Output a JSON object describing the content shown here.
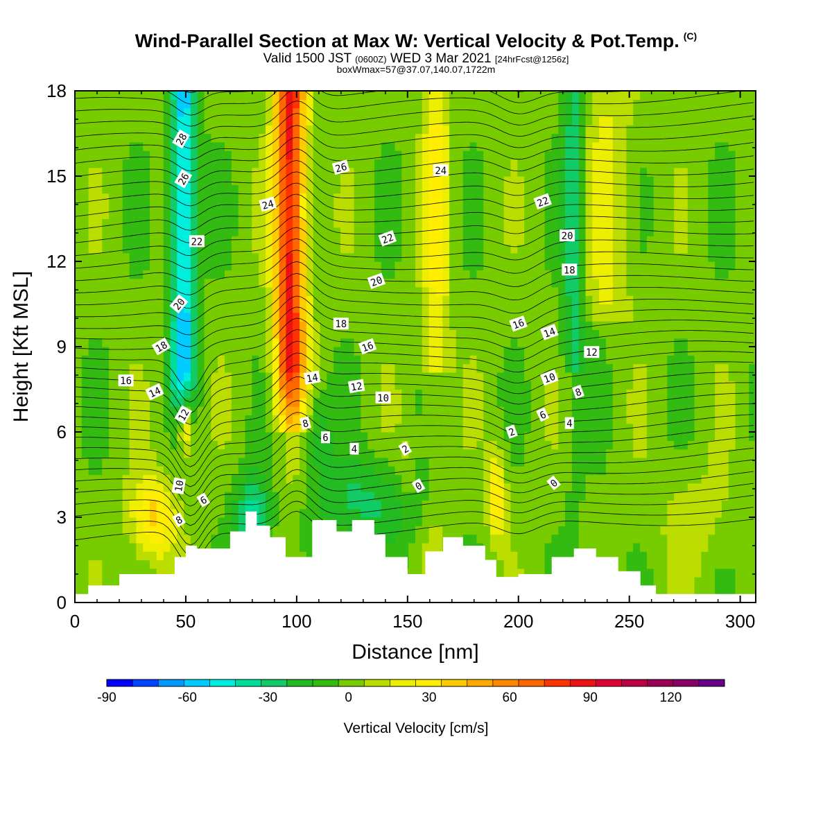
{
  "header": {
    "title": "Wind-Parallel Section at Max W: Vertical Velocity & Pot.Temp.",
    "title_mark": "(C)",
    "valid_prefix": "Valid 1500 JST",
    "valid_utc": "(0600Z)",
    "valid_date": "WED 3 Mar 2021",
    "forecast": "[24hrFcst@1256z]",
    "box_info": "boxWmax=57@37.07,140.07,1722m"
  },
  "chart_data": {
    "type": "heatmap",
    "xlabel": "Distance [nm]",
    "ylabel": "Height [Kft MSL]",
    "xlim": [
      0,
      307
    ],
    "ylim": [
      0,
      18
    ],
    "xticks": [
      "0",
      "50",
      "100",
      "150",
      "200",
      "250",
      "300"
    ],
    "yticks": [
      "0",
      "3",
      "6",
      "9",
      "12",
      "15",
      "18"
    ],
    "colorbar": {
      "title": "Vertical Velocity [cm/s]",
      "range": [
        -90,
        140
      ],
      "tick_labels": [
        "-90",
        "-60",
        "-30",
        "0",
        "30",
        "60",
        "90",
        "120"
      ],
      "colors": [
        "#0000ff",
        "#0044ff",
        "#0099ff",
        "#00ccff",
        "#00eedd",
        "#00dd99",
        "#11cc66",
        "#22bb22",
        "#33bb11",
        "#77cc00",
        "#bbdd00",
        "#eeee00",
        "#ffee00",
        "#ffcc00",
        "#ffaa00",
        "#ff8800",
        "#ff6600",
        "#ff3300",
        "#ee1111",
        "#dd0033",
        "#bb0044",
        "#990055",
        "#880066",
        "#660088"
      ]
    },
    "velocity_columns": [
      {
        "x": 50,
        "w": -55,
        "note": "strong downdraft aloft"
      },
      {
        "x": 95,
        "w": 80,
        "note": "strong updraft"
      },
      {
        "x": 160,
        "w": 20
      },
      {
        "x": 225,
        "w": -30
      },
      {
        "x": 190,
        "w": 35,
        "note": "low-level updraft"
      },
      {
        "x": 35,
        "w": 40,
        "note": "low-level updraft"
      }
    ],
    "terrain_x": [
      0,
      6,
      20,
      40,
      45,
      50,
      55,
      70,
      77,
      82,
      88,
      95,
      100,
      107,
      118,
      125,
      135,
      140,
      150,
      158,
      166,
      175,
      185,
      190,
      200,
      215,
      225,
      235,
      245,
      255,
      262,
      307
    ],
    "terrain_kft": [
      0.3,
      0.6,
      1.0,
      1.0,
      1.6,
      2.0,
      1.9,
      2.5,
      3.2,
      2.7,
      2.3,
      1.6,
      1.6,
      2.9,
      2.5,
      2.9,
      2.4,
      1.6,
      1.0,
      1.8,
      2.3,
      2.0,
      1.5,
      0.9,
      1.0,
      1.6,
      1.9,
      1.6,
      1.1,
      0.6,
      0.3,
      0.3
    ],
    "contour_labels": [
      {
        "text": "28",
        "x": 48,
        "y": 16.3,
        "rot": -60
      },
      {
        "text": "26",
        "x": 49,
        "y": 14.9,
        "rot": -60
      },
      {
        "text": "24",
        "x": 87,
        "y": 14.0,
        "rot": -15
      },
      {
        "text": "26",
        "x": 120,
        "y": 15.3,
        "rot": -15
      },
      {
        "text": "24",
        "x": 165,
        "y": 15.2,
        "rot": 0
      },
      {
        "text": "22",
        "x": 55,
        "y": 12.7,
        "rot": 0
      },
      {
        "text": "22",
        "x": 141,
        "y": 12.8,
        "rot": -20
      },
      {
        "text": "22",
        "x": 211,
        "y": 14.1,
        "rot": -20
      },
      {
        "text": "20",
        "x": 222,
        "y": 12.9,
        "rot": 0
      },
      {
        "text": "20",
        "x": 136,
        "y": 11.3,
        "rot": -20
      },
      {
        "text": "18",
        "x": 223,
        "y": 11.7,
        "rot": 0
      },
      {
        "text": "20",
        "x": 47,
        "y": 10.5,
        "rot": -50
      },
      {
        "text": "18",
        "x": 120,
        "y": 9.8,
        "rot": 0
      },
      {
        "text": "16",
        "x": 200,
        "y": 9.8,
        "rot": -20
      },
      {
        "text": "14",
        "x": 214,
        "y": 9.5,
        "rot": -20
      },
      {
        "text": "16",
        "x": 132,
        "y": 9.0,
        "rot": -20
      },
      {
        "text": "18",
        "x": 39,
        "y": 9.0,
        "rot": -30
      },
      {
        "text": "12",
        "x": 233,
        "y": 8.8,
        "rot": 0
      },
      {
        "text": "10",
        "x": 214,
        "y": 7.9,
        "rot": -20
      },
      {
        "text": "14",
        "x": 107,
        "y": 7.9,
        "rot": -10
      },
      {
        "text": "16",
        "x": 23,
        "y": 7.8,
        "rot": 0
      },
      {
        "text": "12",
        "x": 127,
        "y": 7.6,
        "rot": -10
      },
      {
        "text": "14",
        "x": 36,
        "y": 7.4,
        "rot": -25
      },
      {
        "text": "8",
        "x": 227,
        "y": 7.4,
        "rot": -20
      },
      {
        "text": "10",
        "x": 139,
        "y": 7.2,
        "rot": 0
      },
      {
        "text": "6",
        "x": 211,
        "y": 6.6,
        "rot": -25
      },
      {
        "text": "12",
        "x": 49,
        "y": 6.6,
        "rot": -60
      },
      {
        "text": "8",
        "x": 104,
        "y": 6.3,
        "rot": -15
      },
      {
        "text": "4",
        "x": 223,
        "y": 6.3,
        "rot": 0
      },
      {
        "text": "2",
        "x": 197,
        "y": 6.0,
        "rot": -20
      },
      {
        "text": "6",
        "x": 113,
        "y": 5.8,
        "rot": 0
      },
      {
        "text": "4",
        "x": 126,
        "y": 5.4,
        "rot": 0
      },
      {
        "text": "2",
        "x": 149,
        "y": 5.4,
        "rot": -30
      },
      {
        "text": "0",
        "x": 216,
        "y": 4.2,
        "rot": -40
      },
      {
        "text": "10",
        "x": 47,
        "y": 4.1,
        "rot": -80
      },
      {
        "text": "0",
        "x": 155,
        "y": 4.1,
        "rot": -30
      },
      {
        "text": "6",
        "x": 58,
        "y": 3.6,
        "rot": -30
      },
      {
        "text": "8",
        "x": 47,
        "y": 2.9,
        "rot": -30
      }
    ]
  }
}
